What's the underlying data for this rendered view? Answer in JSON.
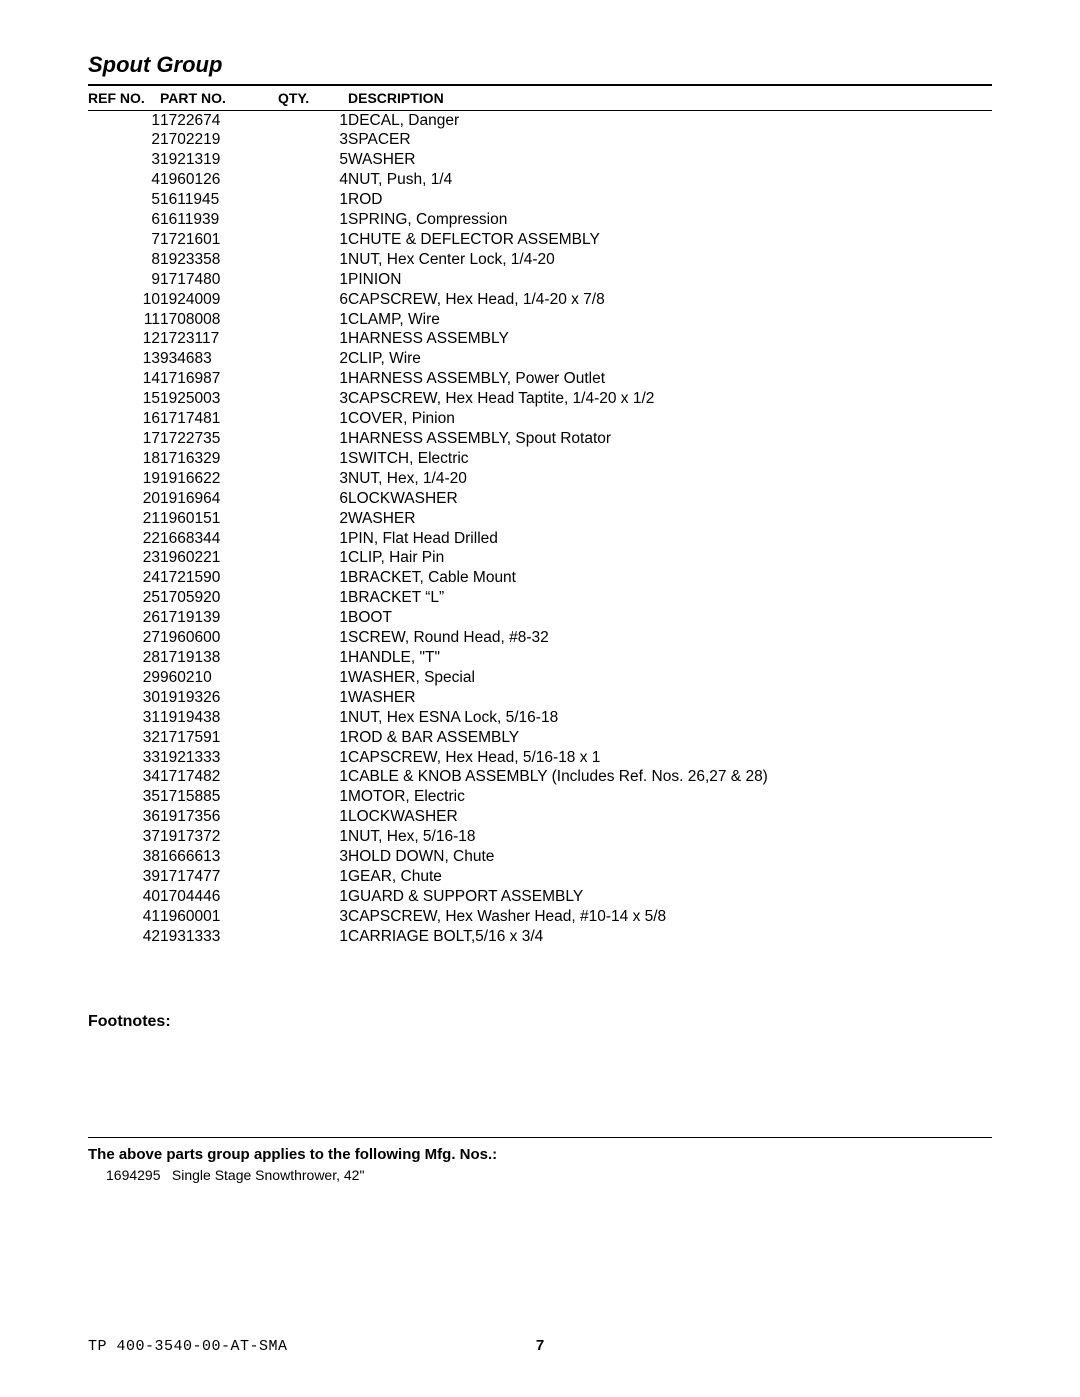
{
  "group_title": "Spout Group",
  "table": {
    "columns": {
      "ref": "REF NO.",
      "part": "PART NO.",
      "qty": "QTY.",
      "desc": "DESCRIPTION"
    },
    "rows": [
      {
        "ref": "1",
        "part": "1722674",
        "qty": "1",
        "desc": "DECAL, Danger"
      },
      {
        "ref": "2",
        "part": "1702219",
        "qty": "3",
        "desc": "SPACER"
      },
      {
        "ref": "3",
        "part": "1921319",
        "qty": "5",
        "desc": "WASHER"
      },
      {
        "ref": "4",
        "part": "1960126",
        "qty": "4",
        "desc": "NUT, Push, 1/4"
      },
      {
        "ref": "5",
        "part": "1611945",
        "qty": "1",
        "desc": "ROD"
      },
      {
        "ref": "6",
        "part": "1611939",
        "qty": "1",
        "desc": "SPRING, Compression"
      },
      {
        "ref": "7",
        "part": "1721601",
        "qty": "1",
        "desc": "CHUTE & DEFLECTOR ASSEMBLY"
      },
      {
        "ref": "8",
        "part": "1923358",
        "qty": "1",
        "desc": "NUT, Hex Center Lock, 1/4-20"
      },
      {
        "ref": "9",
        "part": "1717480",
        "qty": "1",
        "desc": "PINION"
      },
      {
        "ref": "10",
        "part": "1924009",
        "qty": "6",
        "desc": "CAPSCREW, Hex Head, 1/4-20 x 7/8"
      },
      {
        "ref": "11",
        "part": "1708008",
        "qty": "1",
        "desc": "CLAMP, Wire"
      },
      {
        "ref": "12",
        "part": "1723117",
        "qty": "1",
        "desc": "HARNESS ASSEMBLY"
      },
      {
        "ref": "13",
        "part": "934683",
        "qty": "2",
        "desc": "CLIP, Wire"
      },
      {
        "ref": "14",
        "part": "1716987",
        "qty": "1",
        "desc": "HARNESS ASSEMBLY, Power Outlet"
      },
      {
        "ref": "15",
        "part": "1925003",
        "qty": "3",
        "desc": "CAPSCREW, Hex Head Taptite, 1/4-20 x 1/2"
      },
      {
        "ref": "16",
        "part": "1717481",
        "qty": "1",
        "desc": "COVER, Pinion"
      },
      {
        "ref": "17",
        "part": "1722735",
        "qty": "1",
        "desc": "HARNESS ASSEMBLY, Spout Rotator"
      },
      {
        "ref": "18",
        "part": "1716329",
        "qty": "1",
        "desc": "SWITCH, Electric"
      },
      {
        "ref": "19",
        "part": "1916622",
        "qty": "3",
        "desc": "NUT, Hex, 1/4-20"
      },
      {
        "ref": "20",
        "part": "1916964",
        "qty": "6",
        "desc": "LOCKWASHER"
      },
      {
        "ref": "21",
        "part": "1960151",
        "qty": "2",
        "desc": "WASHER"
      },
      {
        "ref": "22",
        "part": "1668344",
        "qty": "1",
        "desc": "PIN, Flat Head Drilled"
      },
      {
        "ref": "23",
        "part": "1960221",
        "qty": "1",
        "desc": "CLIP, Hair Pin"
      },
      {
        "ref": "24",
        "part": "1721590",
        "qty": "1",
        "desc": "BRACKET, Cable Mount"
      },
      {
        "ref": "25",
        "part": "1705920",
        "qty": "1",
        "desc": "BRACKET “L”"
      },
      {
        "ref": "26",
        "part": "1719139",
        "qty": "1",
        "desc": "BOOT"
      },
      {
        "ref": "27",
        "part": "1960600",
        "qty": "1",
        "desc": "SCREW, Round Head, #8-32"
      },
      {
        "ref": "28",
        "part": "1719138",
        "qty": "1",
        "desc": "HANDLE, \"T\""
      },
      {
        "ref": "29",
        "part": "960210",
        "qty": "1",
        "desc": "WASHER, Special"
      },
      {
        "ref": "30",
        "part": "1919326",
        "qty": "1",
        "desc": "WASHER"
      },
      {
        "ref": "31",
        "part": "1919438",
        "qty": "1",
        "desc": "NUT, Hex ESNA Lock, 5/16-18"
      },
      {
        "ref": "32",
        "part": "1717591",
        "qty": "1",
        "desc": "ROD & BAR ASSEMBLY"
      },
      {
        "ref": "33",
        "part": "1921333",
        "qty": "1",
        "desc": "CAPSCREW, Hex Head, 5/16-18 x 1"
      },
      {
        "ref": "34",
        "part": "1717482",
        "qty": "1",
        "desc": "CABLE & KNOB ASSEMBLY (Includes Ref. Nos. 26,27 & 28)"
      },
      {
        "ref": "35",
        "part": "1715885",
        "qty": "1",
        "desc": "MOTOR, Electric"
      },
      {
        "ref": "36",
        "part": "1917356",
        "qty": "1",
        "desc": "LOCKWASHER"
      },
      {
        "ref": "37",
        "part": "1917372",
        "qty": "1",
        "desc": "NUT, Hex, 5/16-18"
      },
      {
        "ref": "38",
        "part": "1666613",
        "qty": "3",
        "desc": "HOLD DOWN, Chute"
      },
      {
        "ref": "39",
        "part": "1717477",
        "qty": "1",
        "desc": "GEAR, Chute"
      },
      {
        "ref": "40",
        "part": "1704446",
        "qty": "1",
        "desc": "GUARD & SUPPORT ASSEMBLY"
      },
      {
        "ref": "41",
        "part": "1960001",
        "qty": "3",
        "desc": "CAPSCREW, Hex Washer Head, #10-14 x 5/8"
      },
      {
        "ref": "42",
        "part": "1931333",
        "qty": "1",
        "desc": "CARRIAGE BOLT,5/16 x 3/4"
      }
    ]
  },
  "footnotes_label": "Footnotes:",
  "applies_label": "The above parts group applies to the following Mfg. Nos.:",
  "mfg": {
    "no": "1694295",
    "desc": "Single Stage Snowthrower, 42\""
  },
  "footer": {
    "doc": "TP 400-3540-00-AT-SMA",
    "page": "7"
  }
}
